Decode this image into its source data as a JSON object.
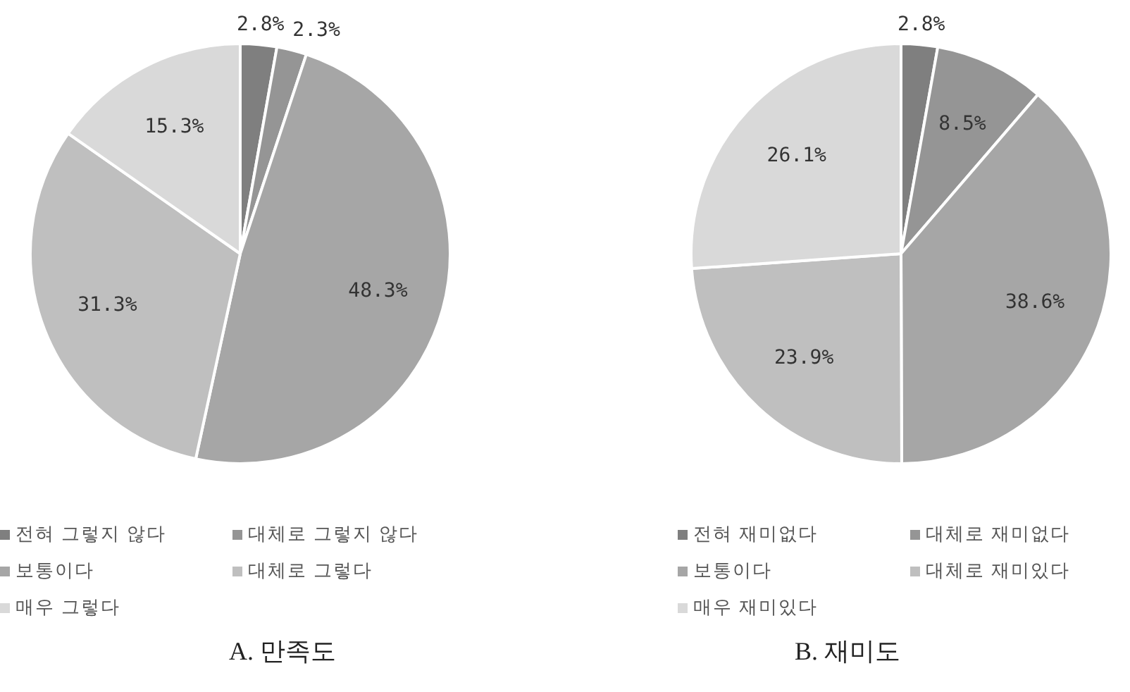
{
  "chart_data": [
    {
      "type": "pie",
      "title": "A. 만족도",
      "categories": [
        "전혀 그렇지 않다",
        "대체로 그렇지 않다",
        "보통이다",
        "대체로 그렇다",
        "매우 그렇다"
      ],
      "values": [
        2.8,
        2.3,
        48.3,
        31.3,
        15.3
      ],
      "value_labels": [
        "2.8%",
        "2.3%",
        "48.3%",
        "31.3%",
        "15.3%"
      ],
      "colors": [
        "#7f7f7f",
        "#959595",
        "#a6a6a6",
        "#bfbfbf",
        "#d9d9d9"
      ],
      "legend": "bottom"
    },
    {
      "type": "pie",
      "title": "B. 재미도",
      "categories": [
        "전혀 재미없다",
        "대체로 재미없다",
        "보통이다",
        "대체로 재미있다",
        "매우 재미있다"
      ],
      "values": [
        2.8,
        8.5,
        38.6,
        23.9,
        26.1
      ],
      "value_labels": [
        "2.8%",
        "8.5%",
        "38.6%",
        "23.9%",
        "26.1%"
      ],
      "colors": [
        "#7f7f7f",
        "#959595",
        "#a6a6a6",
        "#bfbfbf",
        "#d9d9d9"
      ],
      "legend": "bottom"
    }
  ]
}
